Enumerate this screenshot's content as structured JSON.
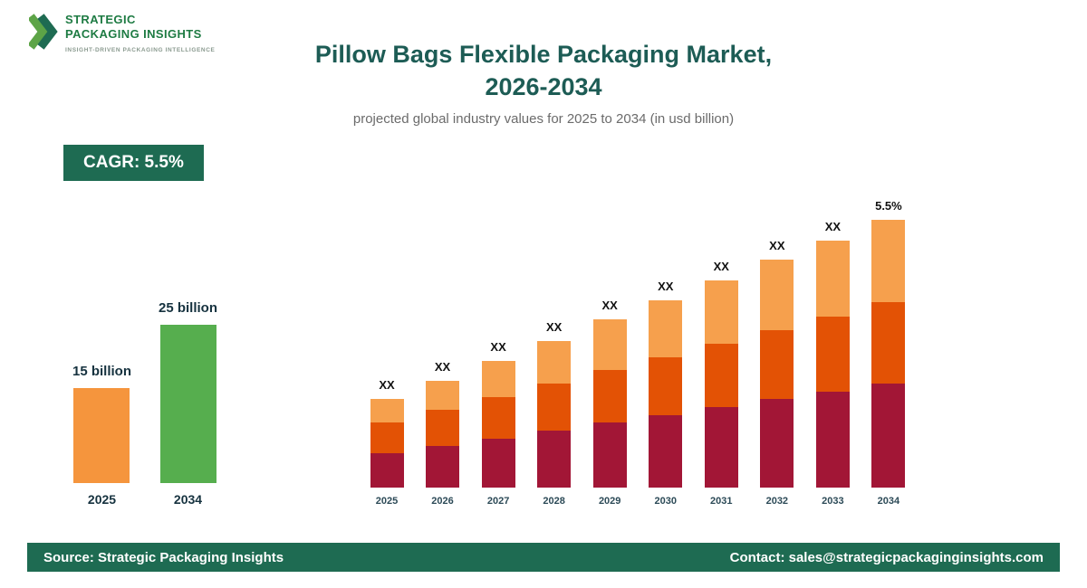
{
  "logo": {
    "line1": "STRATEGIC",
    "line2": "PACKAGING INSIGHTS",
    "tagline": "INSIGHT-DRIVEN PACKAGING INTELLIGENCE"
  },
  "header": {
    "title_line1": "Pillow Bags Flexible Packaging Market,",
    "title_line2": "2026-2034",
    "subtitle": "projected global industry values for 2025 to 2034 (in usd billion)"
  },
  "cagr_badge": "CAGR: 5.5%",
  "footer": {
    "source": "Source: Strategic Packaging Insights",
    "contact": "Contact: sales@strategicpackaginginsights.com"
  },
  "colors": {
    "brand_green": "#1E6B52",
    "title_teal": "#1D5C55",
    "label_dark": "#16323F",
    "mini_orange": "#F5953D",
    "mini_green": "#56AE4E",
    "stack_bottom_maroon": "#A21636",
    "stack_middle_orange_red": "#E35205",
    "stack_top_light_orange": "#F6A04D"
  },
  "chart_data": [
    {
      "type": "bar",
      "name": "summary-comparison",
      "title": "",
      "categories": [
        "2025",
        "2034"
      ],
      "values": [
        15,
        25
      ],
      "value_labels": [
        "15 billion",
        "25 billion"
      ],
      "bar_colors": [
        "#F5953D",
        "#56AE4E"
      ],
      "ylabel": "usd billion",
      "ylim": [
        0,
        30
      ],
      "grid": false,
      "legend": false
    },
    {
      "type": "bar",
      "subtype": "stacked",
      "name": "yearly-market-growth",
      "title": "",
      "categories": [
        "2025",
        "2026",
        "2027",
        "2028",
        "2029",
        "2030",
        "2031",
        "2032",
        "2033",
        "2034"
      ],
      "series": [
        {
          "name": "bottom-segment",
          "color": "#A21636",
          "values": [
            38,
            46,
            54,
            63,
            72,
            80,
            89,
            98,
            106,
            115
          ]
        },
        {
          "name": "middle-segment",
          "color": "#E35205",
          "values": [
            34,
            40,
            46,
            52,
            58,
            64,
            70,
            76,
            83,
            90
          ]
        },
        {
          "name": "top-segment",
          "color": "#F6A04D",
          "values": [
            26,
            32,
            40,
            47,
            56,
            63,
            70,
            78,
            84,
            91
          ]
        }
      ],
      "totals": [
        98,
        118,
        140,
        162,
        186,
        207,
        229,
        252,
        273,
        296
      ],
      "units": "relative height (values shown as XX in source)",
      "bar_labels": [
        "XX",
        "XX",
        "XX",
        "XX",
        "XX",
        "XX",
        "XX",
        "XX",
        "XX",
        "5.5%"
      ],
      "grid": false,
      "legend": false
    }
  ]
}
